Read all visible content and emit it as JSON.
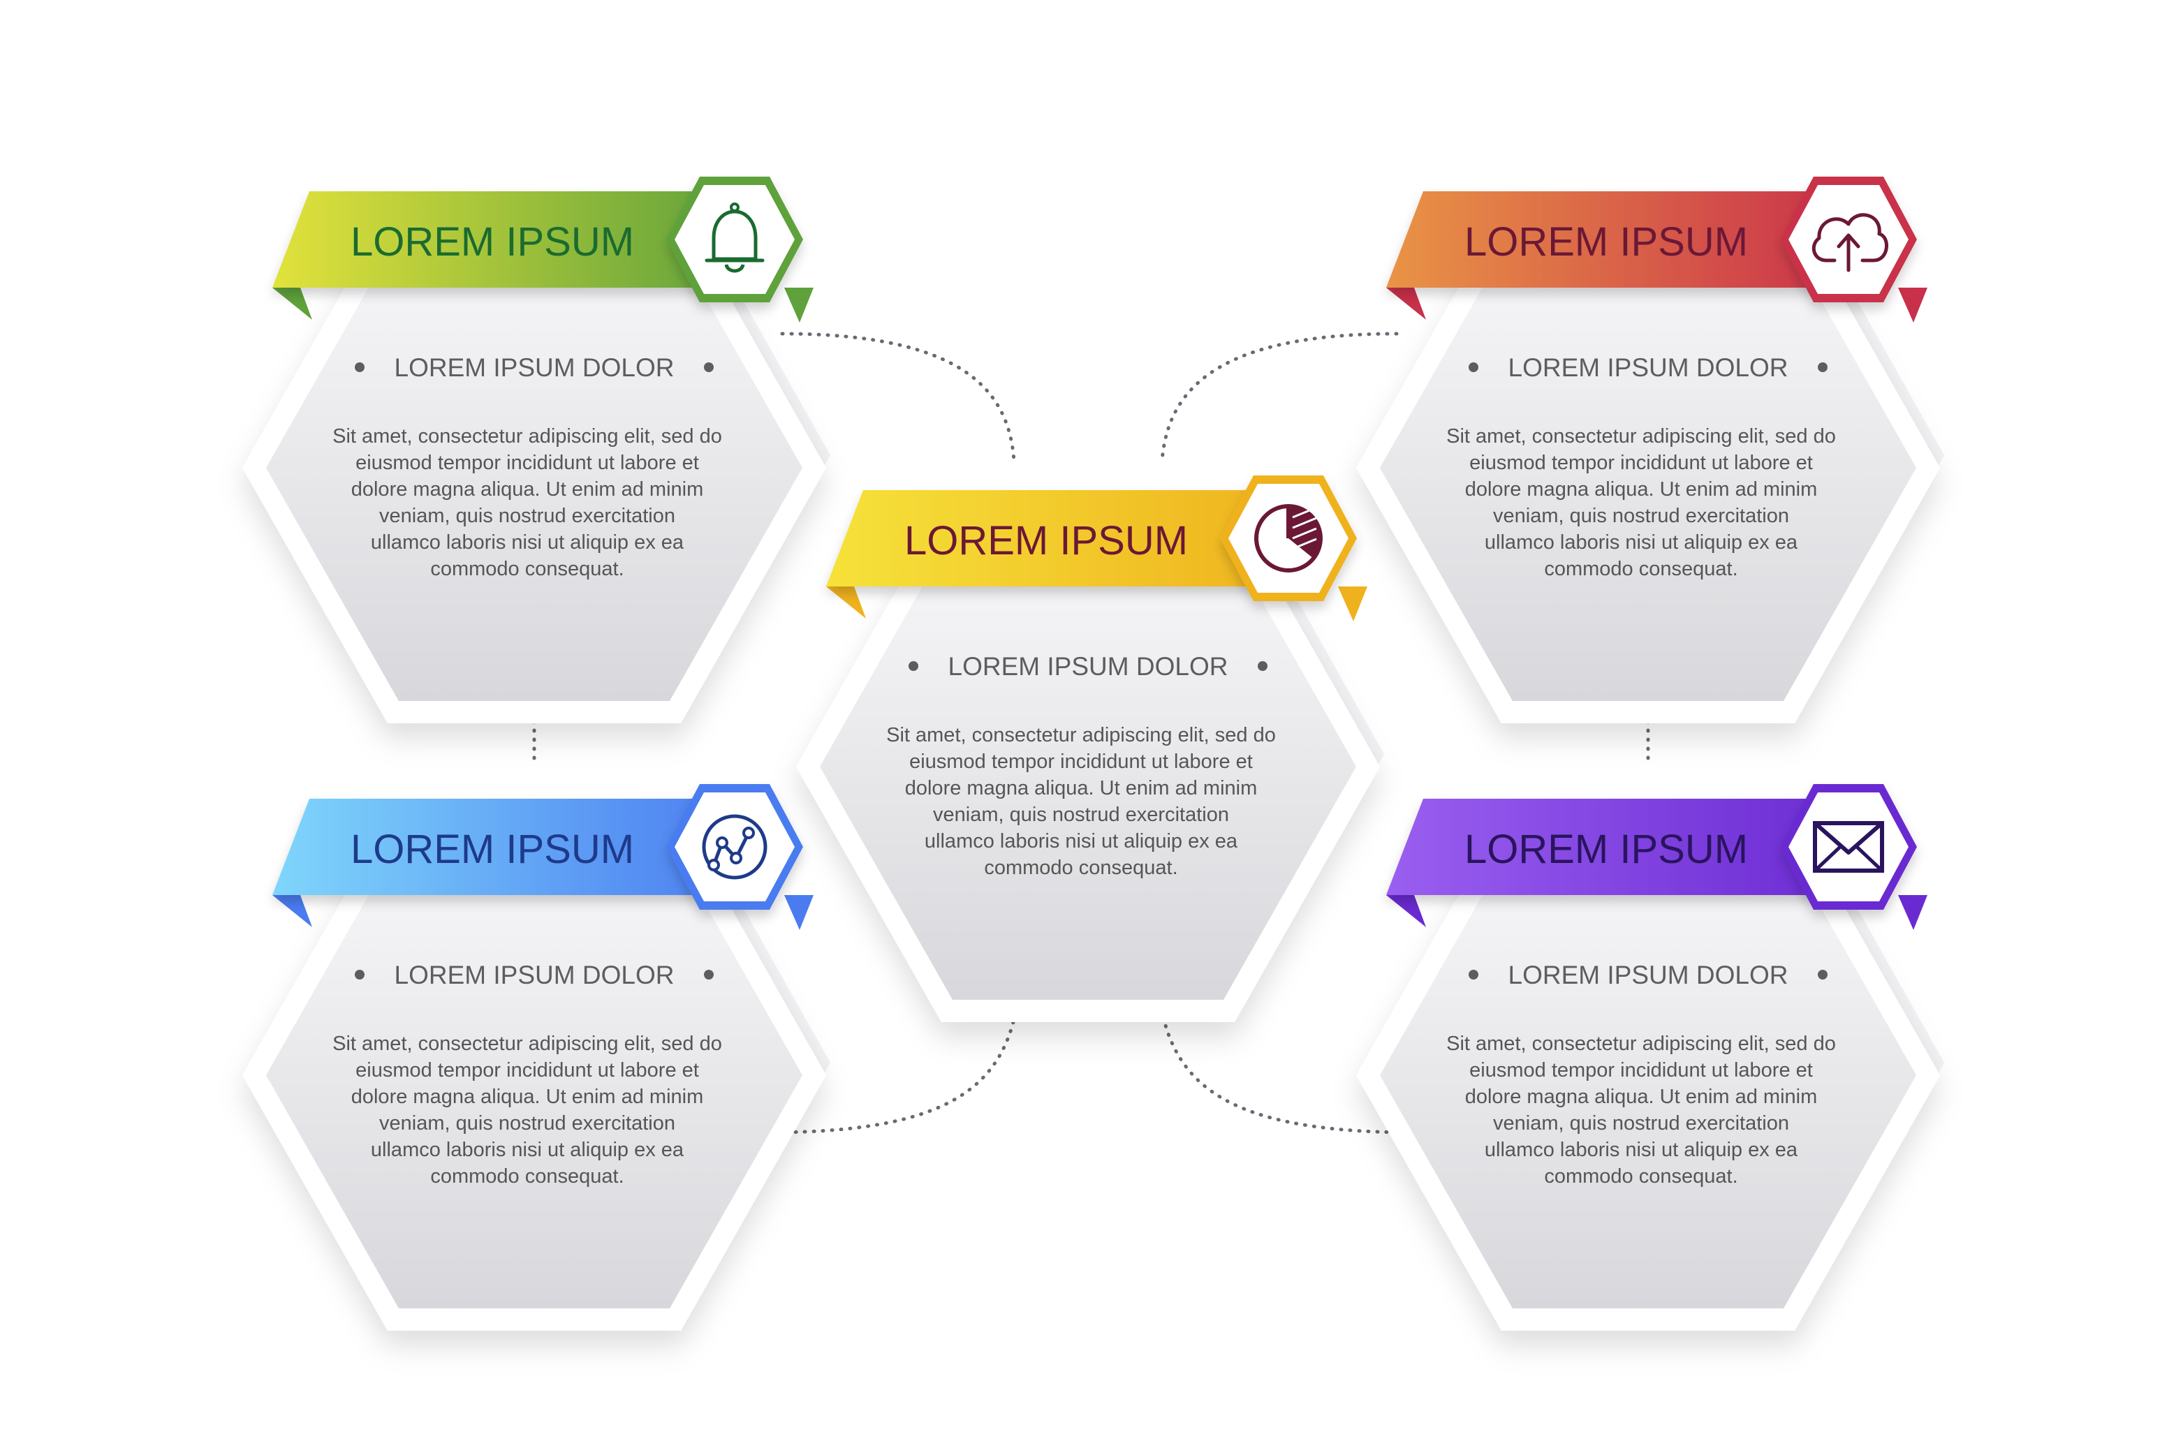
{
  "colors": {
    "background": "#ffffff",
    "hex_fill_light": "#f7f7f9",
    "hex_fill_dark": "#d9d9dd",
    "hex_frame": "#ffffff",
    "connector": "#666a73",
    "text": "#555555"
  },
  "cards": [
    {
      "id": "card-top-left",
      "title": "LOREM IPSUM",
      "subtitle": "LOREM IPSUM DOLOR",
      "body_lines": [
        "Sit amet, consectetur adipiscing elit, sed do",
        "eiusmod tempor incididunt ut labore et",
        "dolore magna aliqua. Ut enim ad minim",
        "veniam, quis nostrud exercitation",
        "ullamco laboris nisi ut aliquip ex ea",
        "commodo consequat."
      ],
      "icon": "bell-icon",
      "banner_gradient": [
        "#e2e23a",
        "#5fa13b"
      ],
      "title_color": "#1a6b30",
      "icon_color": "#1a6b30",
      "accent_color": "#5fa13b"
    },
    {
      "id": "card-bottom-left",
      "title": "LOREM IPSUM",
      "subtitle": "LOREM IPSUM DOLOR",
      "body_lines": [
        "Sit amet, consectetur adipiscing elit, sed do",
        "eiusmod tempor incididunt ut labore et",
        "dolore magna aliqua. Ut enim ad minim",
        "veniam, quis nostrud exercitation",
        "ullamco laboris nisi ut aliquip ex ea",
        "commodo consequat."
      ],
      "icon": "chart-circle-icon",
      "banner_gradient": [
        "#7fd6fb",
        "#4a7cf0"
      ],
      "title_color": "#1e3a8a",
      "icon_color": "#1e3a8a",
      "accent_color": "#4a7cf0"
    },
    {
      "id": "card-center",
      "title": "LOREM IPSUM",
      "subtitle": "LOREM IPSUM DOLOR",
      "body_lines": [
        "Sit amet, consectetur adipiscing elit, sed do",
        "eiusmod tempor incididunt ut labore et",
        "dolore magna aliqua. Ut enim ad minim",
        "veniam, quis nostrud exercitation",
        "ullamco laboris nisi ut aliquip ex ea",
        "commodo consequat."
      ],
      "icon": "pie-chart-icon",
      "banner_gradient": [
        "#f6e23a",
        "#efb21e"
      ],
      "title_color": "#6b1836",
      "icon_color": "#6b1836",
      "accent_color": "#efb21e"
    },
    {
      "id": "card-top-right",
      "title": "LOREM IPSUM",
      "subtitle": "LOREM IPSUM DOLOR",
      "body_lines": [
        "Sit amet, consectetur adipiscing elit, sed do",
        "eiusmod tempor incididunt ut labore et",
        "dolore magna aliqua. Ut enim ad minim",
        "veniam, quis nostrud exercitation",
        "ullamco laboris nisi ut aliquip ex ea",
        "commodo consequat."
      ],
      "icon": "cloud-upload-icon",
      "banner_gradient": [
        "#e99445",
        "#c9304a"
      ],
      "title_color": "#6b1836",
      "icon_color": "#6b1836",
      "accent_color": "#c9304a"
    },
    {
      "id": "card-bottom-right",
      "title": "LOREM IPSUM",
      "subtitle": "LOREM IPSUM DOLOR",
      "body_lines": [
        "Sit amet, consectetur adipiscing elit, sed do",
        "eiusmod tempor incididunt ut labore et",
        "dolore magna aliqua. Ut enim ad minim",
        "veniam, quis nostrud exercitation",
        "ullamco laboris nisi ut aliquip ex ea",
        "commodo consequat."
      ],
      "icon": "mail-icon",
      "banner_gradient": [
        "#9a5ff0",
        "#6a2ad2"
      ],
      "title_color": "#2a145e",
      "icon_color": "#2a145e",
      "accent_color": "#6a2ad2"
    }
  ]
}
